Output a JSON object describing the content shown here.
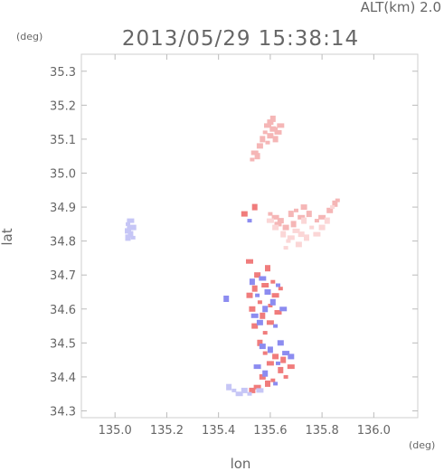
{
  "header": {
    "altitude": "ALT(km)  2.0",
    "timestamp": "2013/05/29  15:38:14"
  },
  "chart_data": {
    "type": "scatter",
    "title": "2013/05/29  15:38:14",
    "subtitle": "ALT(km)  2.0",
    "xlabel": "lon",
    "ylabel": "lat",
    "xunit": "(deg)",
    "yunit": "(deg)",
    "xlim": [
      134.87,
      136.17
    ],
    "ylim": [
      34.28,
      35.35
    ],
    "xticks": [
      "135.0",
      "135.2",
      "135.4",
      "135.6",
      "135.8",
      "136.0"
    ],
    "yticks": [
      "34.3",
      "34.4",
      "34.5",
      "34.6",
      "34.7",
      "34.8",
      "34.9",
      "35.0",
      "35.1",
      "35.2",
      "35.3"
    ],
    "grid": false,
    "colors": {
      "light_red": "#f5b6b6",
      "pale_red": "#fbd6d6",
      "red": "#f07c7c",
      "blue": "#8c8cf0",
      "light_blue": "#c6c6f6"
    },
    "series": [
      {
        "color": "#f5b6b6",
        "points": [
          [
            135.53,
            35.04
          ],
          [
            135.54,
            35.06
          ],
          [
            135.56,
            35.08
          ],
          [
            135.57,
            35.1
          ],
          [
            135.58,
            35.12
          ],
          [
            135.59,
            35.14
          ],
          [
            135.6,
            35.15
          ],
          [
            135.61,
            35.16
          ],
          [
            135.62,
            35.13
          ],
          [
            135.63,
            35.12
          ],
          [
            135.6,
            35.11
          ],
          [
            135.62,
            35.1
          ],
          [
            135.59,
            35.09
          ],
          [
            135.64,
            35.14
          ],
          [
            135.61,
            35.13
          ],
          [
            135.55,
            35.05
          ],
          [
            135.6,
            34.88
          ],
          [
            135.62,
            34.87
          ],
          [
            135.64,
            34.86
          ],
          [
            135.68,
            34.88
          ],
          [
            135.7,
            34.89
          ],
          [
            135.72,
            34.87
          ],
          [
            135.73,
            34.9
          ],
          [
            135.75,
            34.88
          ],
          [
            135.78,
            34.86
          ],
          [
            135.8,
            34.87
          ],
          [
            135.83,
            34.89
          ],
          [
            135.85,
            34.91
          ],
          [
            135.86,
            34.92
          ],
          [
            135.63,
            34.85
          ],
          [
            135.66,
            34.84
          ],
          [
            135.69,
            34.85
          ]
        ]
      },
      {
        "color": "#fbd6d6",
        "points": [
          [
            135.6,
            34.86
          ],
          [
            135.62,
            34.84
          ],
          [
            135.65,
            34.82
          ],
          [
            135.67,
            34.8
          ],
          [
            135.7,
            34.83
          ],
          [
            135.72,
            34.82
          ],
          [
            135.74,
            34.81
          ],
          [
            135.76,
            34.84
          ],
          [
            135.78,
            34.82
          ],
          [
            135.8,
            34.84
          ],
          [
            135.82,
            34.86
          ],
          [
            135.66,
            34.78
          ],
          [
            135.68,
            34.81
          ],
          [
            135.71,
            34.79
          ],
          [
            135.73,
            34.86
          ],
          [
            135.84,
            34.9
          ]
        ]
      },
      {
        "color": "#f07c7c",
        "points": [
          [
            135.52,
            34.64
          ],
          [
            135.54,
            34.66
          ],
          [
            135.56,
            34.62
          ],
          [
            135.58,
            34.67
          ],
          [
            135.53,
            34.6
          ],
          [
            135.57,
            34.58
          ],
          [
            135.6,
            34.61
          ],
          [
            135.62,
            34.64
          ],
          [
            135.55,
            34.7
          ],
          [
            135.59,
            34.72
          ],
          [
            135.61,
            34.68
          ],
          [
            135.63,
            34.59
          ],
          [
            135.54,
            34.55
          ],
          [
            135.56,
            34.5
          ],
          [
            135.58,
            34.47
          ],
          [
            135.6,
            34.44
          ],
          [
            135.62,
            34.46
          ],
          [
            135.64,
            34.42
          ],
          [
            135.66,
            34.4
          ],
          [
            135.68,
            34.43
          ],
          [
            135.57,
            34.4
          ],
          [
            135.59,
            34.38
          ],
          [
            135.61,
            34.39
          ],
          [
            135.55,
            34.37
          ],
          [
            135.53,
            34.36
          ],
          [
            135.65,
            34.45
          ],
          [
            135.58,
            34.53
          ],
          [
            135.52,
            34.74
          ],
          [
            135.5,
            34.88
          ],
          [
            135.54,
            34.9
          ],
          [
            135.64,
            34.66
          ],
          [
            135.6,
            34.56
          ]
        ]
      },
      {
        "color": "#8c8cf0",
        "points": [
          [
            135.53,
            34.68
          ],
          [
            135.55,
            34.64
          ],
          [
            135.57,
            34.69
          ],
          [
            135.59,
            34.65
          ],
          [
            135.61,
            34.62
          ],
          [
            135.63,
            34.67
          ],
          [
            135.54,
            34.58
          ],
          [
            135.56,
            34.56
          ],
          [
            135.58,
            34.6
          ],
          [
            135.62,
            34.55
          ],
          [
            135.65,
            34.6
          ],
          [
            135.57,
            34.49
          ],
          [
            135.6,
            34.48
          ],
          [
            135.63,
            34.44
          ],
          [
            135.66,
            34.47
          ],
          [
            135.68,
            34.46
          ],
          [
            135.58,
            34.41
          ],
          [
            135.62,
            34.38
          ],
          [
            135.55,
            34.43
          ],
          [
            135.64,
            34.5
          ],
          [
            135.43,
            34.63
          ],
          [
            135.52,
            34.86
          ]
        ]
      },
      {
        "color": "#c6c6f6",
        "points": [
          [
            135.05,
            34.85
          ],
          [
            135.06,
            34.84
          ],
          [
            135.05,
            34.83
          ],
          [
            135.06,
            34.82
          ],
          [
            135.07,
            34.81
          ],
          [
            135.06,
            34.86
          ],
          [
            135.07,
            34.84
          ],
          [
            135.05,
            34.81
          ],
          [
            135.46,
            34.36
          ],
          [
            135.48,
            34.35
          ],
          [
            135.5,
            34.36
          ],
          [
            135.44,
            34.37
          ],
          [
            135.52,
            34.35
          ],
          [
            135.56,
            34.36
          ]
        ]
      }
    ]
  }
}
